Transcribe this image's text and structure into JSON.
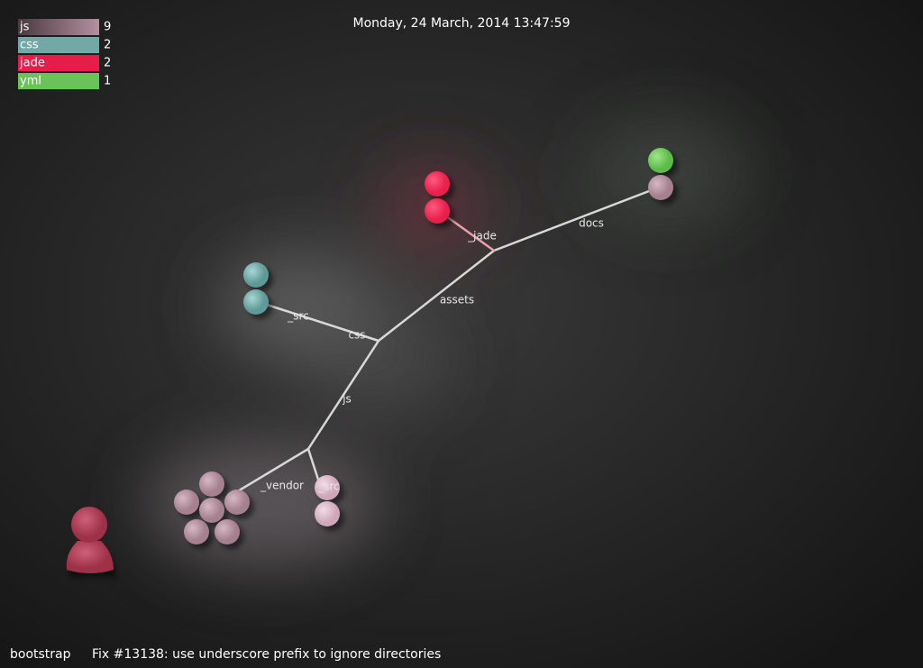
{
  "header": {
    "date": "Monday, 24 March, 2014 13:47:59"
  },
  "legend": [
    {
      "label": "js",
      "count": 9,
      "color": "#b3909f"
    },
    {
      "label": "css",
      "count": 2,
      "color": "#72a8a6"
    },
    {
      "label": "jade",
      "count": 2,
      "color": "#e41d4a"
    },
    {
      "label": "yml",
      "count": 1,
      "color": "#6cc25a"
    }
  ],
  "tree": {
    "labels": [
      "_jade",
      "docs",
      "assets",
      "_src",
      "css",
      "js",
      "_vendor",
      "_src"
    ]
  },
  "footer": {
    "repo": "bootstrap",
    "message": "Fix #13138: use underscore prefix to ignore directories"
  }
}
